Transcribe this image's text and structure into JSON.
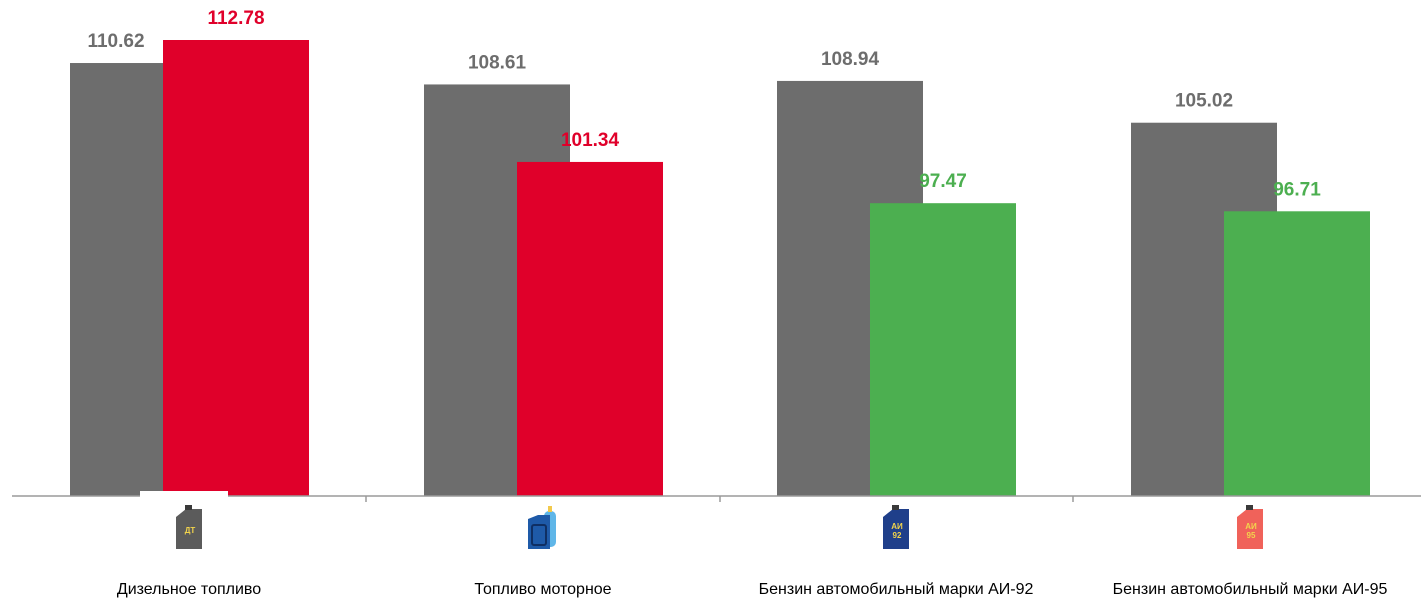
{
  "chart_data": {
    "type": "bar",
    "categories": [
      "Дизельное топливо",
      "Топливо моторное",
      "Бензин автомобильный марки АИ-92",
      "Бензин автомобильный марки АИ-95"
    ],
    "series": [
      {
        "values": [
          110.62,
          108.61,
          108.94,
          105.02
        ],
        "color": "#6d6d6d"
      },
      {
        "values": [
          112.78,
          101.34,
          97.47,
          96.71
        ],
        "colors": [
          "#e0002a",
          "#e0002a",
          "#4caf50",
          "#4caf50"
        ]
      }
    ],
    "ylim": [
      70,
      114
    ],
    "grid": false,
    "legend": "none",
    "icons": [
      {
        "name": "diesel-canister-icon",
        "color": "#5b5b5b",
        "label": "ДТ"
      },
      {
        "name": "motor-fuel-canister-icon",
        "color": "#1e5aa8",
        "label": ""
      },
      {
        "name": "ai92-canister-icon",
        "color": "#1f3f8a",
        "label": "АИ 92"
      },
      {
        "name": "ai95-canister-icon",
        "color": "#f0625a",
        "label": "АИ 95"
      }
    ]
  }
}
